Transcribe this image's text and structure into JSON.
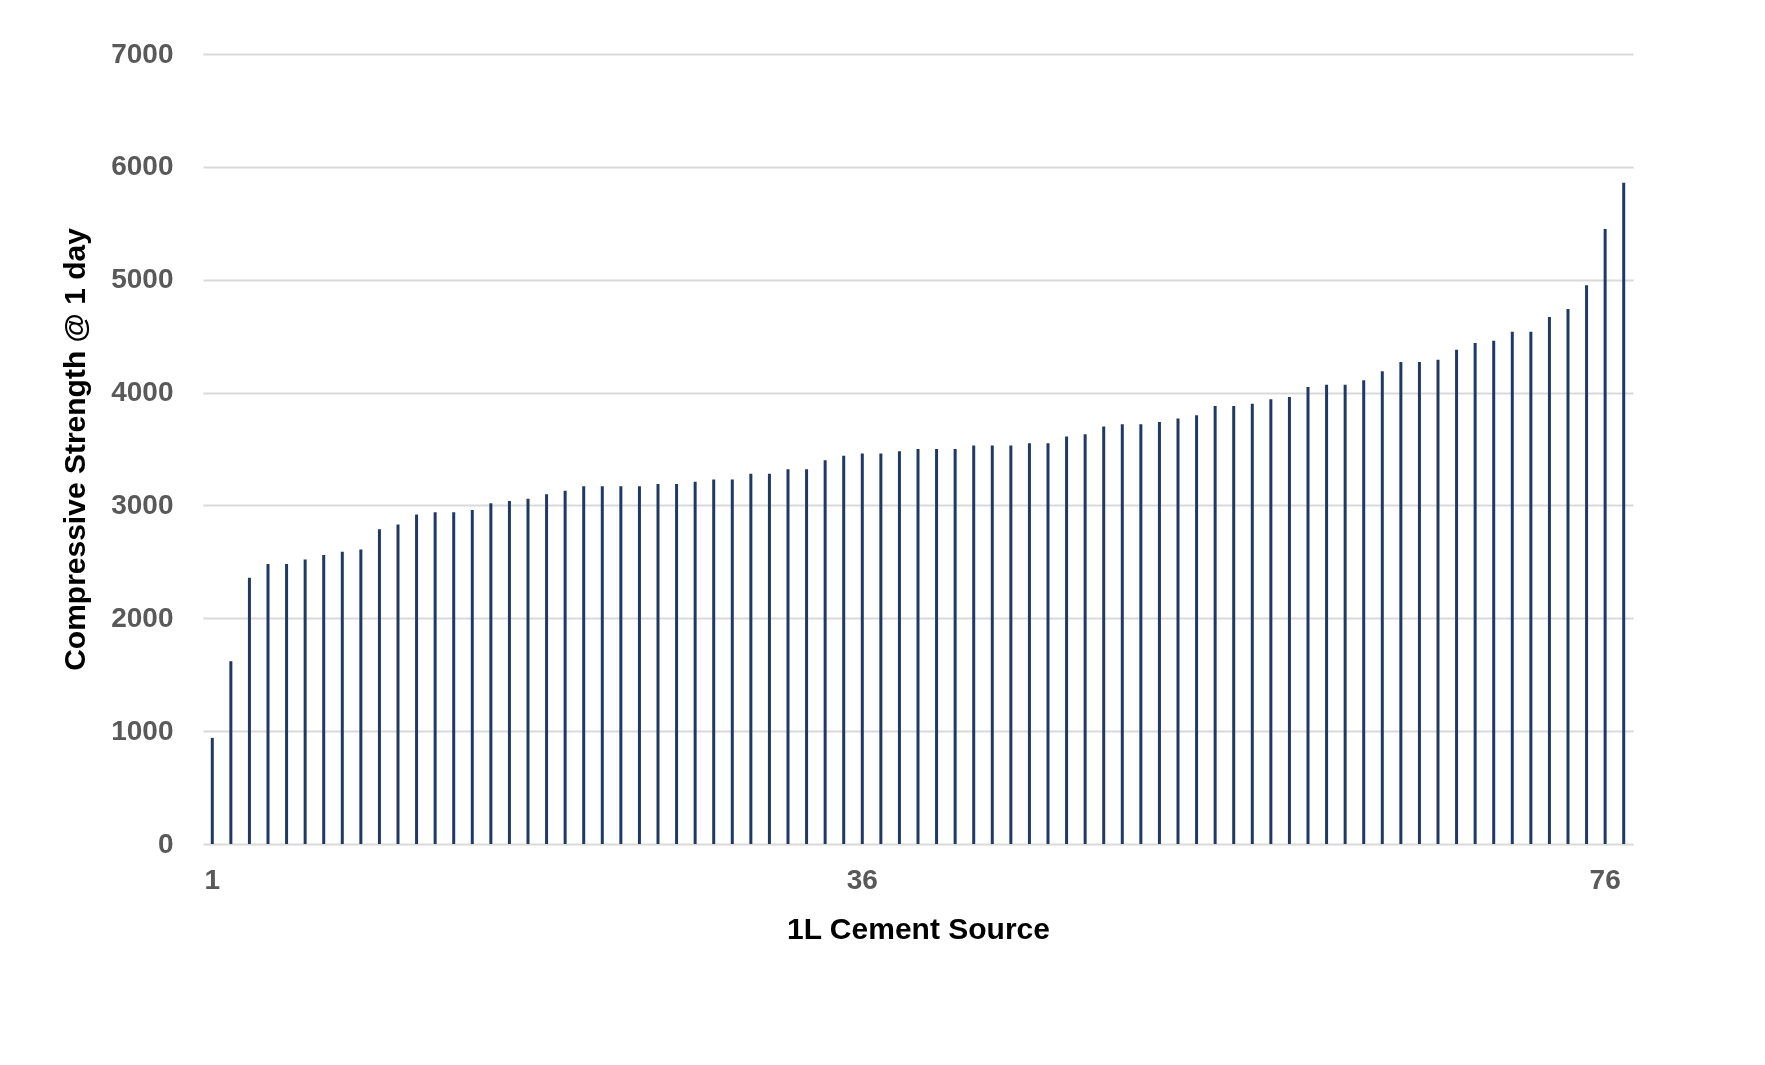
{
  "chart_data": {
    "type": "bar",
    "xlabel": "1L Cement Source",
    "ylabel": "Compressive Strength @ 1 day",
    "categories": [
      "1",
      null,
      null,
      null,
      null,
      null,
      null,
      null,
      null,
      null,
      null,
      null,
      null,
      null,
      null,
      null,
      null,
      null,
      null,
      null,
      null,
      null,
      null,
      null,
      null,
      null,
      null,
      null,
      null,
      null,
      null,
      null,
      null,
      null,
      null,
      "36",
      null,
      null,
      null,
      null,
      null,
      null,
      null,
      null,
      null,
      null,
      null,
      null,
      null,
      null,
      null,
      null,
      null,
      null,
      null,
      null,
      null,
      null,
      null,
      null,
      null,
      null,
      null,
      null,
      null,
      null,
      null,
      null,
      null,
      null,
      null,
      null,
      null,
      null,
      null,
      "76",
      null
    ],
    "values": [
      940,
      1620,
      2360,
      2480,
      2480,
      2520,
      2560,
      2590,
      2610,
      2790,
      2830,
      2920,
      2940,
      2940,
      2960,
      3020,
      3040,
      3060,
      3100,
      3130,
      3170,
      3170,
      3170,
      3170,
      3190,
      3190,
      3210,
      3230,
      3230,
      3280,
      3280,
      3320,
      3320,
      3400,
      3440,
      3460,
      3460,
      3480,
      3500,
      3500,
      3500,
      3530,
      3530,
      3530,
      3550,
      3550,
      3610,
      3630,
      3700,
      3720,
      3720,
      3740,
      3770,
      3800,
      3880,
      3880,
      3900,
      3940,
      3960,
      4050,
      4070,
      4070,
      4110,
      4190,
      4270,
      4270,
      4290,
      4380,
      4440,
      4460,
      4540,
      4540,
      4670,
      4740,
      4950,
      5450,
      5860
    ],
    "color": "#203864",
    "ylim": [
      0,
      7000
    ],
    "yticks": [
      0,
      1000,
      2000,
      3000,
      4000,
      5000,
      6000,
      7000
    ],
    "grid": "y"
  }
}
